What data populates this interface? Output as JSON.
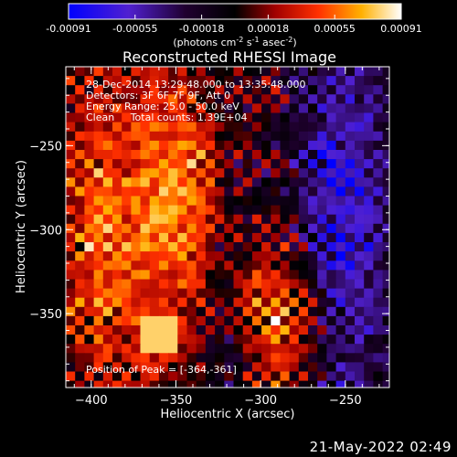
{
  "colorbar": {
    "tick_labels": [
      "-0.00091",
      "-0.00055",
      "-0.00018",
      "0.00018",
      "0.00055",
      "0.00091"
    ],
    "range": [
      -0.00091,
      0.00091
    ],
    "unit_label_prefix": "(photons cm",
    "unit_exp1": "-2",
    "unit_mid": " s",
    "unit_exp2": "-1",
    "unit_mid2": " asec",
    "unit_exp3": "-2",
    "unit_suffix": ")"
  },
  "chart_data": {
    "type": "heatmap",
    "title": "Reconstructed RHESSI Image",
    "xlabel": "Heliocentric X (arcsec)",
    "ylabel": "Heliocentric Y (arcsec)",
    "xlim": [
      -415,
      -224
    ],
    "ylim": [
      -394,
      -203
    ],
    "x_ticks": [
      -400,
      -350,
      -300,
      -250
    ],
    "x_tick_labels": [
      "−400",
      "−350",
      "−300",
      "−250"
    ],
    "y_ticks": [
      -250,
      -300,
      -350
    ],
    "y_tick_labels": [
      "−250",
      "−300",
      "−350"
    ],
    "colormap": [
      "#0000ff",
      "#6020c0",
      "#000000",
      "#a00000",
      "#ff4000",
      "#ffc000",
      "#ffffff"
    ],
    "annotations": [
      "28-Dec-2014 13:29:48.000 to 13:35:48.000",
      "Detectors: 3F 6F 7F 9F, Att 0",
      "Energy Range: 25.0 - 50.0 keV",
      "Clean     Total counts: 1.39E+04"
    ],
    "peak_label": "Position of Peak = [-364,-361]",
    "peak": [
      -364,
      -361
    ]
  },
  "timestamp": "21-May-2022 02:49"
}
